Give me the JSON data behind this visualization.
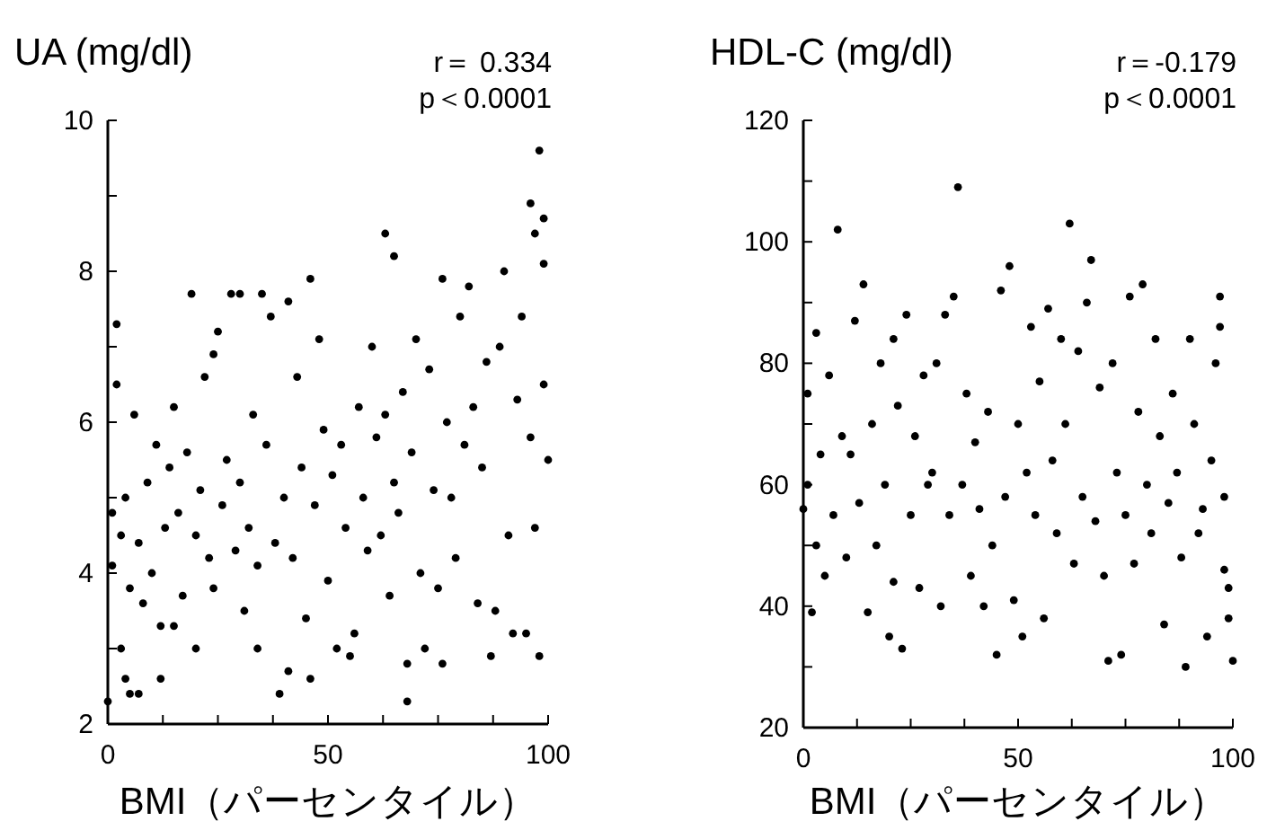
{
  "chart_data": [
    {
      "type": "scatter",
      "ylabel": "UA (mg/dl)",
      "xlabel": "BMI（パーセンタイル）",
      "annotations": [
        "r＝ 0.334",
        "p＜0.0001"
      ],
      "xlim": [
        0,
        100
      ],
      "ylim": [
        2,
        10
      ],
      "xticks": [
        0,
        {
          "value": 12.5,
          "label": null
        },
        {
          "value": 25,
          "label": null
        },
        {
          "value": 37.5,
          "label": null
        },
        50,
        {
          "value": 62.5,
          "label": null
        },
        {
          "value": 75,
          "label": null
        },
        {
          "value": 87.5,
          "label": null
        },
        100
      ],
      "yticks": [
        2,
        {
          "value": 3,
          "label": null
        },
        4,
        {
          "value": 5,
          "label": null
        },
        6,
        {
          "value": 7,
          "label": null
        },
        8,
        {
          "value": 9,
          "label": null
        },
        10
      ],
      "marker": "circle",
      "grid": false,
      "series": [
        {
          "color": "#000000",
          "x": [
            0,
            1,
            1,
            2,
            2,
            3,
            3,
            4,
            4,
            5,
            5,
            6,
            7,
            7,
            8,
            9,
            10,
            11,
            12,
            12,
            13,
            14,
            15,
            15,
            16,
            17,
            18,
            19,
            20,
            20,
            21,
            22,
            23,
            24,
            24,
            25,
            26,
            27,
            28,
            29,
            30,
            30,
            31,
            32,
            33,
            34,
            34,
            35,
            36,
            37,
            38,
            39,
            40,
            41,
            41,
            42,
            43,
            44,
            45,
            46,
            46,
            47,
            48,
            49,
            50,
            51,
            52,
            53,
            54,
            55,
            56,
            57,
            58,
            59,
            60,
            61,
            62,
            63,
            63,
            64,
            65,
            65,
            66,
            67,
            68,
            68,
            69,
            70,
            71,
            72,
            73,
            74,
            75,
            76,
            76,
            77,
            78,
            79,
            80,
            81,
            82,
            83,
            84,
            85,
            86,
            87,
            88,
            89,
            90,
            91,
            92,
            93,
            94,
            95,
            96,
            96,
            97,
            97,
            98,
            98,
            99,
            99,
            99,
            100
          ],
          "values": [
            2.3,
            4.1,
            4.8,
            7.3,
            6.5,
            3,
            4.5,
            2.6,
            5,
            2.4,
            3.8,
            6.1,
            2.4,
            4.4,
            3.6,
            5.2,
            4,
            5.7,
            2.6,
            3.3,
            4.6,
            5.4,
            3.3,
            6.2,
            4.8,
            3.7,
            5.6,
            7.7,
            3,
            4.5,
            5.1,
            6.6,
            4.2,
            6.9,
            3.8,
            7.2,
            4.9,
            5.5,
            7.7,
            4.3,
            7.7,
            5.2,
            3.5,
            4.6,
            6.1,
            3,
            4.1,
            7.7,
            5.7,
            7.4,
            4.4,
            2.4,
            5,
            7.6,
            2.7,
            4.2,
            6.6,
            5.4,
            3.4,
            7.9,
            2.6,
            4.9,
            7.1,
            5.9,
            3.9,
            5.3,
            3,
            5.7,
            4.6,
            2.9,
            3.2,
            6.2,
            5,
            4.3,
            7,
            5.8,
            4.5,
            8.5,
            6.1,
            3.7,
            8.2,
            5.2,
            4.8,
            6.4,
            2.3,
            2.8,
            5.6,
            7.1,
            4,
            3,
            6.7,
            5.1,
            3.8,
            7.9,
            2.8,
            6,
            5,
            4.2,
            7.4,
            5.7,
            7.8,
            6.2,
            3.6,
            5.4,
            6.8,
            2.9,
            3.5,
            7,
            8,
            4.5,
            3.2,
            6.3,
            7.4,
            3.2,
            8.9,
            5.8,
            8.5,
            4.6,
            9.6,
            2.9,
            8.7,
            8.1,
            6.5,
            5.5
          ]
        }
      ]
    },
    {
      "type": "scatter",
      "ylabel": "HDL-C (mg/dl)",
      "xlabel": "BMI（パーセンタイル）",
      "annotations": [
        "r＝-0.179",
        "p＜0.0001"
      ],
      "xlim": [
        0,
        100
      ],
      "ylim": [
        20,
        120
      ],
      "xticks": [
        0,
        {
          "value": 12.5,
          "label": null
        },
        {
          "value": 25,
          "label": null
        },
        {
          "value": 37.5,
          "label": null
        },
        50,
        {
          "value": 62.5,
          "label": null
        },
        {
          "value": 75,
          "label": null
        },
        {
          "value": 87.5,
          "label": null
        },
        100
      ],
      "yticks": [
        20,
        {
          "value": 30,
          "label": null
        },
        40,
        {
          "value": 50,
          "label": null
        },
        60,
        {
          "value": 70,
          "label": null
        },
        80,
        {
          "value": 90,
          "label": null
        },
        100,
        {
          "value": 110,
          "label": null
        },
        120
      ],
      "marker": "circle",
      "grid": false,
      "series": [
        {
          "color": "#000000",
          "x": [
            0,
            1,
            1,
            2,
            3,
            3,
            4,
            5,
            6,
            7,
            8,
            9,
            10,
            11,
            12,
            13,
            14,
            15,
            16,
            17,
            18,
            19,
            20,
            21,
            21,
            22,
            23,
            24,
            25,
            26,
            27,
            28,
            29,
            30,
            31,
            32,
            33,
            34,
            35,
            36,
            37,
            38,
            39,
            40,
            41,
            42,
            43,
            44,
            45,
            46,
            47,
            48,
            49,
            50,
            51,
            52,
            53,
            54,
            55,
            56,
            57,
            58,
            59,
            60,
            61,
            62,
            63,
            64,
            65,
            66,
            67,
            68,
            69,
            70,
            71,
            72,
            73,
            74,
            75,
            76,
            77,
            78,
            79,
            80,
            81,
            82,
            83,
            84,
            85,
            86,
            87,
            88,
            89,
            90,
            91,
            92,
            93,
            94,
            95,
            96,
            97,
            97,
            98,
            98,
            99,
            99,
            100
          ],
          "values": [
            56,
            75,
            60,
            39,
            85,
            50,
            65,
            45,
            78,
            55,
            102,
            68,
            48,
            65,
            87,
            57,
            93,
            39,
            70,
            50,
            80,
            60,
            35,
            84,
            44,
            73,
            33,
            88,
            55,
            68,
            43,
            78,
            60,
            62,
            80,
            40,
            88,
            55,
            91,
            109,
            60,
            75,
            45,
            67,
            56,
            40,
            72,
            50,
            32,
            92,
            58,
            96,
            41,
            70,
            35,
            62,
            86,
            55,
            77,
            38,
            89,
            64,
            52,
            84,
            70,
            103,
            47,
            82,
            58,
            90,
            97,
            54,
            76,
            45,
            31,
            80,
            62,
            32,
            55,
            91,
            47,
            72,
            93,
            60,
            52,
            84,
            68,
            37,
            57,
            75,
            62,
            48,
            30,
            84,
            70,
            52,
            56,
            35,
            64,
            80,
            91,
            86,
            46,
            58,
            43,
            38,
            31
          ]
        }
      ]
    }
  ]
}
